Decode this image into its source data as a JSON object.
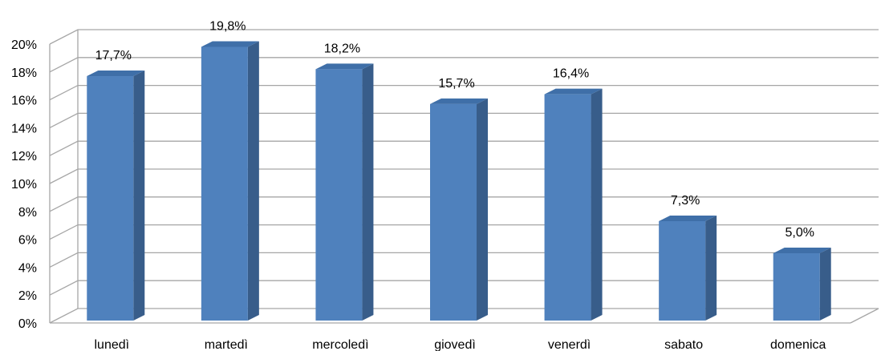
{
  "chart_data": {
    "type": "bar",
    "categories": [
      "lunedì",
      "martedì",
      "mercoledì",
      "giovedì",
      "venerdì",
      "sabato",
      "domenica"
    ],
    "values": [
      17.7,
      19.8,
      18.2,
      15.7,
      16.4,
      7.3,
      5.0
    ],
    "data_labels": [
      "17,7%",
      "19,8%",
      "18,2%",
      "15,7%",
      "16,4%",
      "7,3%",
      "5,0%"
    ],
    "ytick_labels": [
      "0%",
      "2%",
      "4%",
      "6%",
      "8%",
      "10%",
      "12%",
      "14%",
      "16%",
      "18%",
      "20%"
    ],
    "ylim": [
      0,
      20
    ],
    "grid": true,
    "legend": "none",
    "style": "3d-column",
    "colors": {
      "bar_front": "#4f81bd",
      "bar_side": "#385d8a",
      "bar_top": "#3f6fa8",
      "grid": "#a6a6a6"
    }
  }
}
